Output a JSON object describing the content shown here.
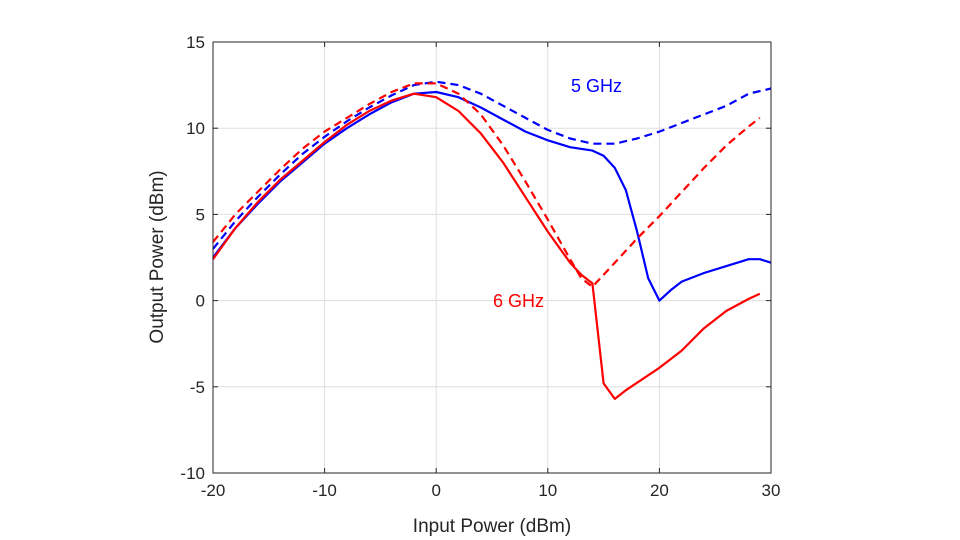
{
  "chart_data": {
    "type": "line",
    "title": "",
    "xlabel": "Input Power (dBm)",
    "ylabel": "Output Power (dBm)",
    "xlim": [
      -20,
      30
    ],
    "ylim": [
      -10,
      15
    ],
    "xticks": [
      -20,
      -10,
      0,
      10,
      20,
      30
    ],
    "yticks": [
      -10,
      -5,
      0,
      5,
      10,
      15
    ],
    "grid": true,
    "annotations": [
      {
        "text": "5 GHz",
        "color": "#0000ff"
      },
      {
        "text": "6 GHz",
        "color": "#ff0000"
      }
    ],
    "series": [
      {
        "color": "#0000ff",
        "style": "solid",
        "x": [
          -20,
          -18,
          -16,
          -14,
          -12,
          -10,
          -8,
          -6,
          -4,
          -2,
          0,
          2,
          4,
          6,
          8,
          10,
          12,
          14,
          15,
          16,
          17,
          18,
          19,
          20,
          21,
          22,
          24,
          26,
          28,
          29,
          30
        ],
        "y": [
          2.5,
          4.2,
          5.6,
          6.9,
          8.0,
          9.1,
          10.0,
          10.8,
          11.5,
          12.0,
          12.1,
          11.8,
          11.2,
          10.5,
          9.8,
          9.3,
          8.9,
          8.7,
          8.4,
          7.7,
          6.4,
          4.0,
          1.3,
          0.0,
          0.6,
          1.1,
          1.6,
          2.0,
          2.4,
          2.4,
          2.2
        ]
      },
      {
        "color": "#0000ff",
        "style": "dashed",
        "x": [
          -20,
          -18,
          -16,
          -14,
          -12,
          -10,
          -8,
          -6,
          -4,
          -2,
          0,
          2,
          4,
          6,
          8,
          10,
          12,
          14,
          16,
          18,
          20,
          22,
          24,
          26,
          28,
          30
        ],
        "y": [
          3.0,
          4.6,
          6.0,
          7.3,
          8.5,
          9.5,
          10.4,
          11.2,
          11.9,
          12.5,
          12.7,
          12.5,
          12.0,
          11.3,
          10.6,
          9.9,
          9.4,
          9.1,
          9.1,
          9.4,
          9.8,
          10.3,
          10.8,
          11.3,
          12.0,
          12.3
        ]
      },
      {
        "color": "#ff0000",
        "style": "solid",
        "x": [
          -20,
          -18,
          -16,
          -14,
          -12,
          -10,
          -8,
          -6,
          -4,
          -2,
          0,
          2,
          4,
          6,
          8,
          10,
          12,
          13,
          14,
          15,
          16,
          17,
          20,
          22,
          24,
          26,
          28,
          29
        ],
        "y": [
          2.4,
          4.2,
          5.7,
          7.0,
          8.1,
          9.2,
          10.2,
          11.0,
          11.6,
          12.0,
          11.8,
          11.0,
          9.7,
          8.0,
          6.0,
          4.0,
          2.2,
          1.5,
          1.0,
          -4.8,
          -5.7,
          -5.2,
          -3.9,
          -2.9,
          -1.6,
          -0.6,
          0.1,
          0.4
        ]
      },
      {
        "color": "#ff0000",
        "style": "dashed",
        "x": [
          -20,
          -18,
          -16,
          -14,
          -12,
          -10,
          -8,
          -6,
          -4,
          -2,
          0,
          2,
          4,
          6,
          8,
          10,
          12,
          13,
          14,
          16,
          18,
          20,
          22,
          24,
          26,
          28,
          29
        ],
        "y": [
          3.4,
          5.0,
          6.3,
          7.6,
          8.8,
          9.8,
          10.6,
          11.4,
          12.1,
          12.6,
          12.6,
          12.0,
          10.8,
          9.0,
          6.9,
          4.7,
          2.4,
          1.3,
          0.8,
          2.2,
          3.6,
          4.9,
          6.3,
          7.7,
          9.0,
          10.1,
          10.6
        ]
      }
    ]
  }
}
